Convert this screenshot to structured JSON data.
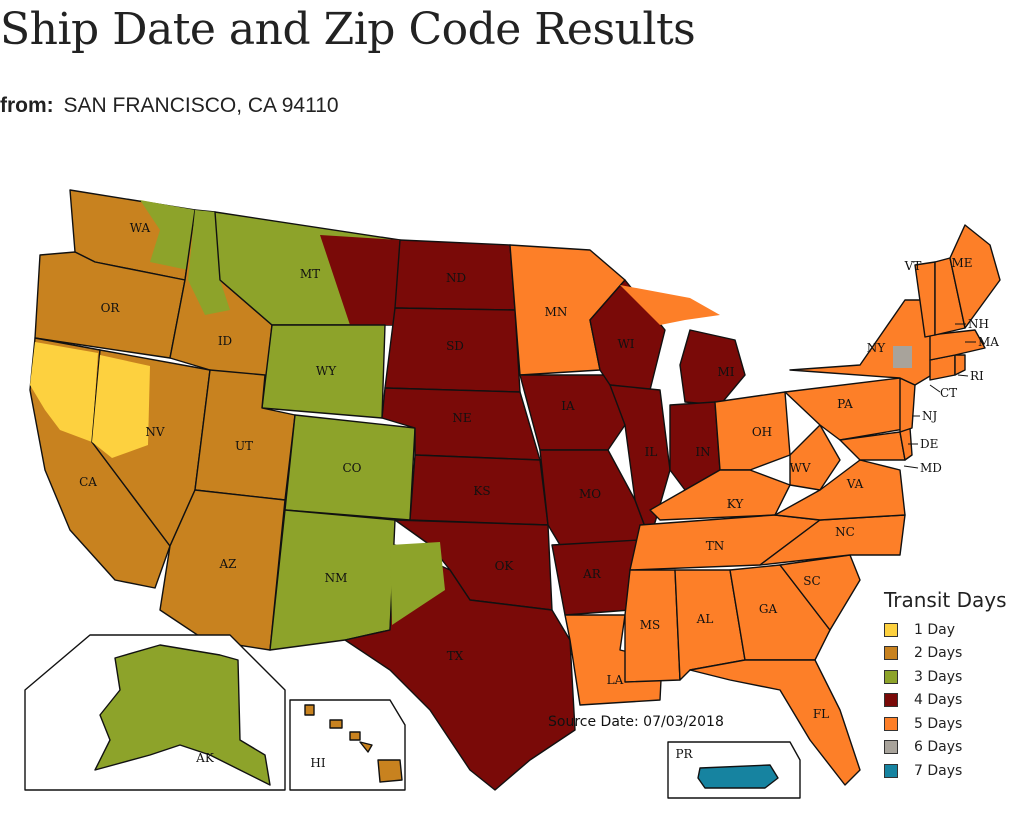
{
  "page": {
    "title": "Ship Date and Zip Code Results",
    "from_label": "from:",
    "from_value": "SAN FRANCISCO, CA 94110"
  },
  "map": {
    "source_date": "Source Date: 07/03/2018",
    "legend": {
      "title": "Transit Days",
      "items": [
        {
          "label": "1 Day",
          "color": "#fdd13f"
        },
        {
          "label": "2 Days",
          "color": "#c8821f"
        },
        {
          "label": "3 Days",
          "color": "#8da32a"
        },
        {
          "label": "4 Days",
          "color": "#7a0a08"
        },
        {
          "label": "5 Days",
          "color": "#fd7f28"
        },
        {
          "label": "6 Days",
          "color": "#a8a39b"
        },
        {
          "label": "7 Days",
          "color": "#1683a0"
        }
      ]
    },
    "states": {
      "WA": "WA",
      "OR": "OR",
      "CA": "CA",
      "NV": "NV",
      "ID": "ID",
      "MT": "MT",
      "WY": "WY",
      "UT": "UT",
      "AZ": "AZ",
      "CO": "CO",
      "NM": "NM",
      "ND": "ND",
      "SD": "SD",
      "NE": "NE",
      "KS": "KS",
      "OK": "OK",
      "TX": "TX",
      "MN": "MN",
      "IA": "IA",
      "MO": "MO",
      "AR": "AR",
      "LA": "LA",
      "WI": "WI",
      "IL": "IL",
      "MI": "MI",
      "IN": "IN",
      "OH": "OH",
      "KY": "KY",
      "TN": "TN",
      "MS": "MS",
      "AL": "AL",
      "GA": "GA",
      "FL": "FL",
      "SC": "SC",
      "NC": "NC",
      "VA": "VA",
      "WV": "WV",
      "PA": "PA",
      "NY": "NY",
      "VT": "VT",
      "ME": "ME",
      "NH": "NH",
      "MA": "MA",
      "RI": "RI",
      "CT": "CT",
      "NJ": "NJ",
      "DE": "DE",
      "MD": "MD",
      "AK": "AK",
      "HI": "HI",
      "PR": "PR"
    }
  }
}
